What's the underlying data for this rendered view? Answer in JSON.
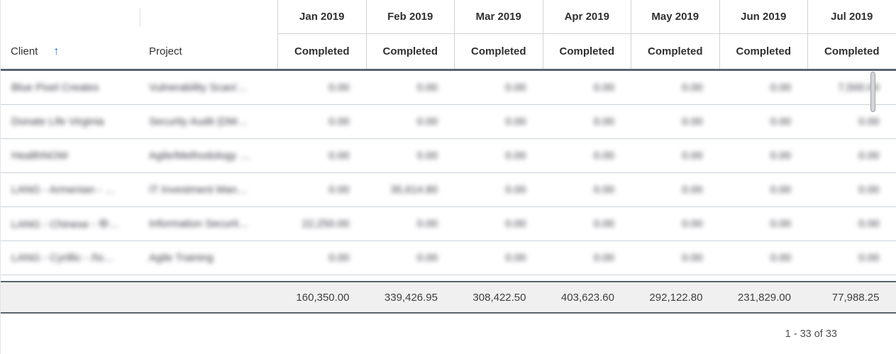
{
  "table": {
    "columns": {
      "client_label": "Client",
      "project_label": "Project",
      "months": [
        "Jan 2019",
        "Feb 2019",
        "Mar 2019",
        "Apr 2019",
        "May 2019",
        "Jun 2019",
        "Jul 2019"
      ],
      "sub_label": "Completed"
    },
    "sort": {
      "column": "Client",
      "direction": "ascending",
      "icon": "arrow-up",
      "glyph": "↑"
    },
    "rows": [
      {
        "client": "Blue Pixel Creates",
        "project": "Vulnerability Scan/…",
        "values": [
          "0.00",
          "0.00",
          "0.00",
          "0.00",
          "0.00",
          "0.00",
          "7,500.00"
        ]
      },
      {
        "client": "Donate Life Virginia",
        "project": "Security Audit (DM…",
        "values": [
          "0.00",
          "0.00",
          "0.00",
          "0.00",
          "0.00",
          "0.00",
          "0.00"
        ]
      },
      {
        "client": "HealthNOW",
        "project": "Agile/Methodology …",
        "values": [
          "0.00",
          "0.00",
          "0.00",
          "0.00",
          "0.00",
          "0.00",
          "0.00"
        ]
      },
      {
        "client": "LANG - Armenian - …",
        "project": "IT Investment Man…",
        "values": [
          "0.00",
          "35,614.80",
          "0.00",
          "0.00",
          "0.00",
          "0.00",
          "0.00"
        ]
      },
      {
        "client": "LANG - Chinese - 中…",
        "project": "Information Securit…",
        "values": [
          "22,250.00",
          "0.00",
          "0.00",
          "0.00",
          "0.00",
          "0.00",
          "0.00"
        ]
      },
      {
        "client": "LANG - Cyrillic - Ло…",
        "project": "Agile Training",
        "values": [
          "0.00",
          "0.00",
          "0.00",
          "0.00",
          "0.00",
          "0.00",
          "0.00"
        ]
      }
    ],
    "totals": [
      "160,350.00",
      "339,426.95",
      "308,422.50",
      "403,623.60",
      "292,122.80",
      "231,829.00",
      "77,988.25"
    ]
  },
  "footer": {
    "pagination": "1 - 33 of 33"
  },
  "colors": {
    "sort_accent": "#1f6fd6",
    "border_dark": "#5a6470",
    "row_separator": "#ccd2d9",
    "header_divider": "#d2d2d2",
    "totals_bg": "#f0f0f0",
    "text_primary": "#333333",
    "text_blurred": "#3e3e49"
  }
}
